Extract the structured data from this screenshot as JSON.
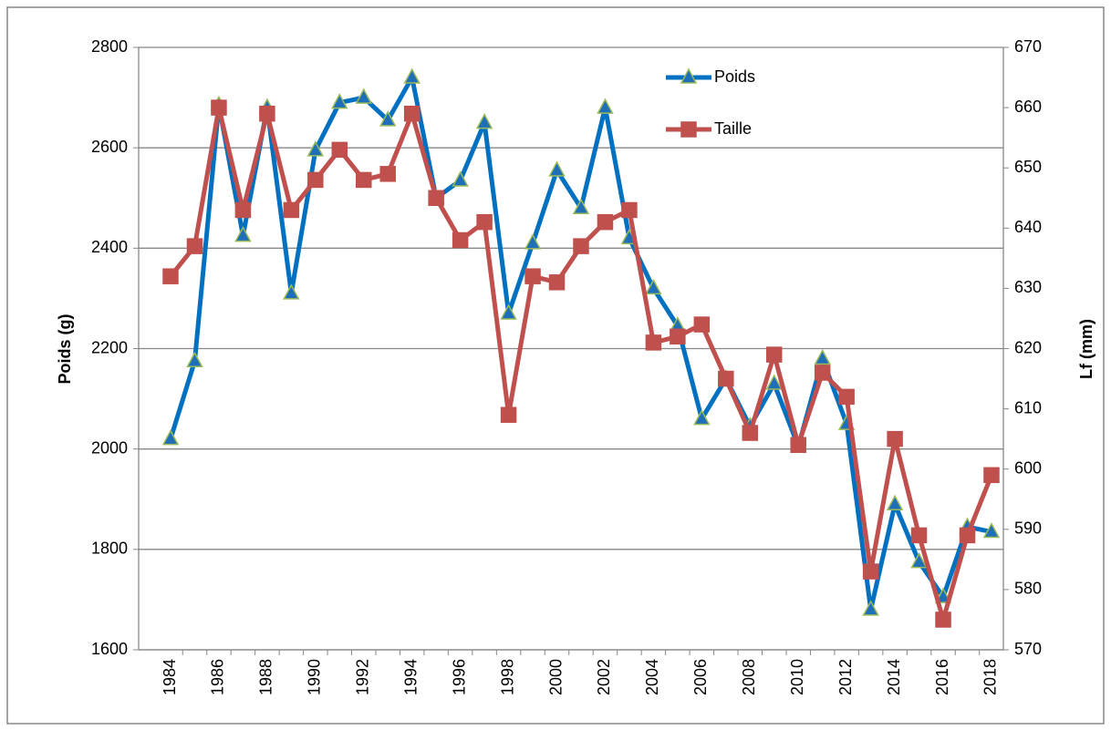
{
  "chart_data": {
    "type": "line",
    "categories": [
      "1984",
      null,
      "1986",
      null,
      "1988",
      null,
      "1990",
      null,
      "1992",
      null,
      "1994",
      null,
      "1996",
      null,
      "1998",
      null,
      "2000",
      null,
      "2002",
      null,
      "2004",
      null,
      "2006",
      null,
      "2008",
      null,
      "2010",
      null,
      "2012",
      null,
      "2014",
      null,
      "2016",
      null,
      "2018"
    ],
    "ylabel": "Poids (g)",
    "y2label": "Lf (mm)",
    "ylim": [
      1600,
      2800
    ],
    "yticks": [
      1600,
      1800,
      2000,
      2200,
      2400,
      2600,
      2800
    ],
    "y2lim": [
      570,
      670
    ],
    "y2ticks": [
      570,
      580,
      590,
      600,
      610,
      620,
      630,
      640,
      650,
      660,
      670
    ],
    "grid": true,
    "legend_position": "top-right",
    "series": [
      {
        "name": "Poids",
        "color": "#0070c0",
        "marker": "triangle",
        "marker_fill": "#1f6fb8",
        "marker_edge": "#9bbb59",
        "values": [
          2020,
          2175,
          2685,
          2425,
          2680,
          2310,
          2595,
          2690,
          2700,
          2655,
          2740,
          2500,
          2535,
          2650,
          2270,
          2410,
          2555,
          2480,
          2680,
          2420,
          2320,
          2245,
          2060,
          2140,
          2045,
          2130,
          2005,
          2180,
          2050,
          1680,
          1890,
          1775,
          1705,
          1845,
          1835
        ]
      },
      {
        "name": "Taille",
        "color": "#c0504d",
        "marker": "square",
        "marker_fill": "#c0504d",
        "marker_edge": "#c0504d",
        "axis": "y2",
        "values": [
          632,
          637,
          660,
          643,
          659,
          643,
          648,
          653,
          648,
          649,
          659,
          645,
          638,
          641,
          609,
          632,
          631,
          637,
          641,
          643,
          621,
          622,
          624,
          615,
          606,
          619,
          604,
          616,
          612,
          583,
          605,
          589,
          575,
          589,
          599
        ]
      }
    ]
  }
}
